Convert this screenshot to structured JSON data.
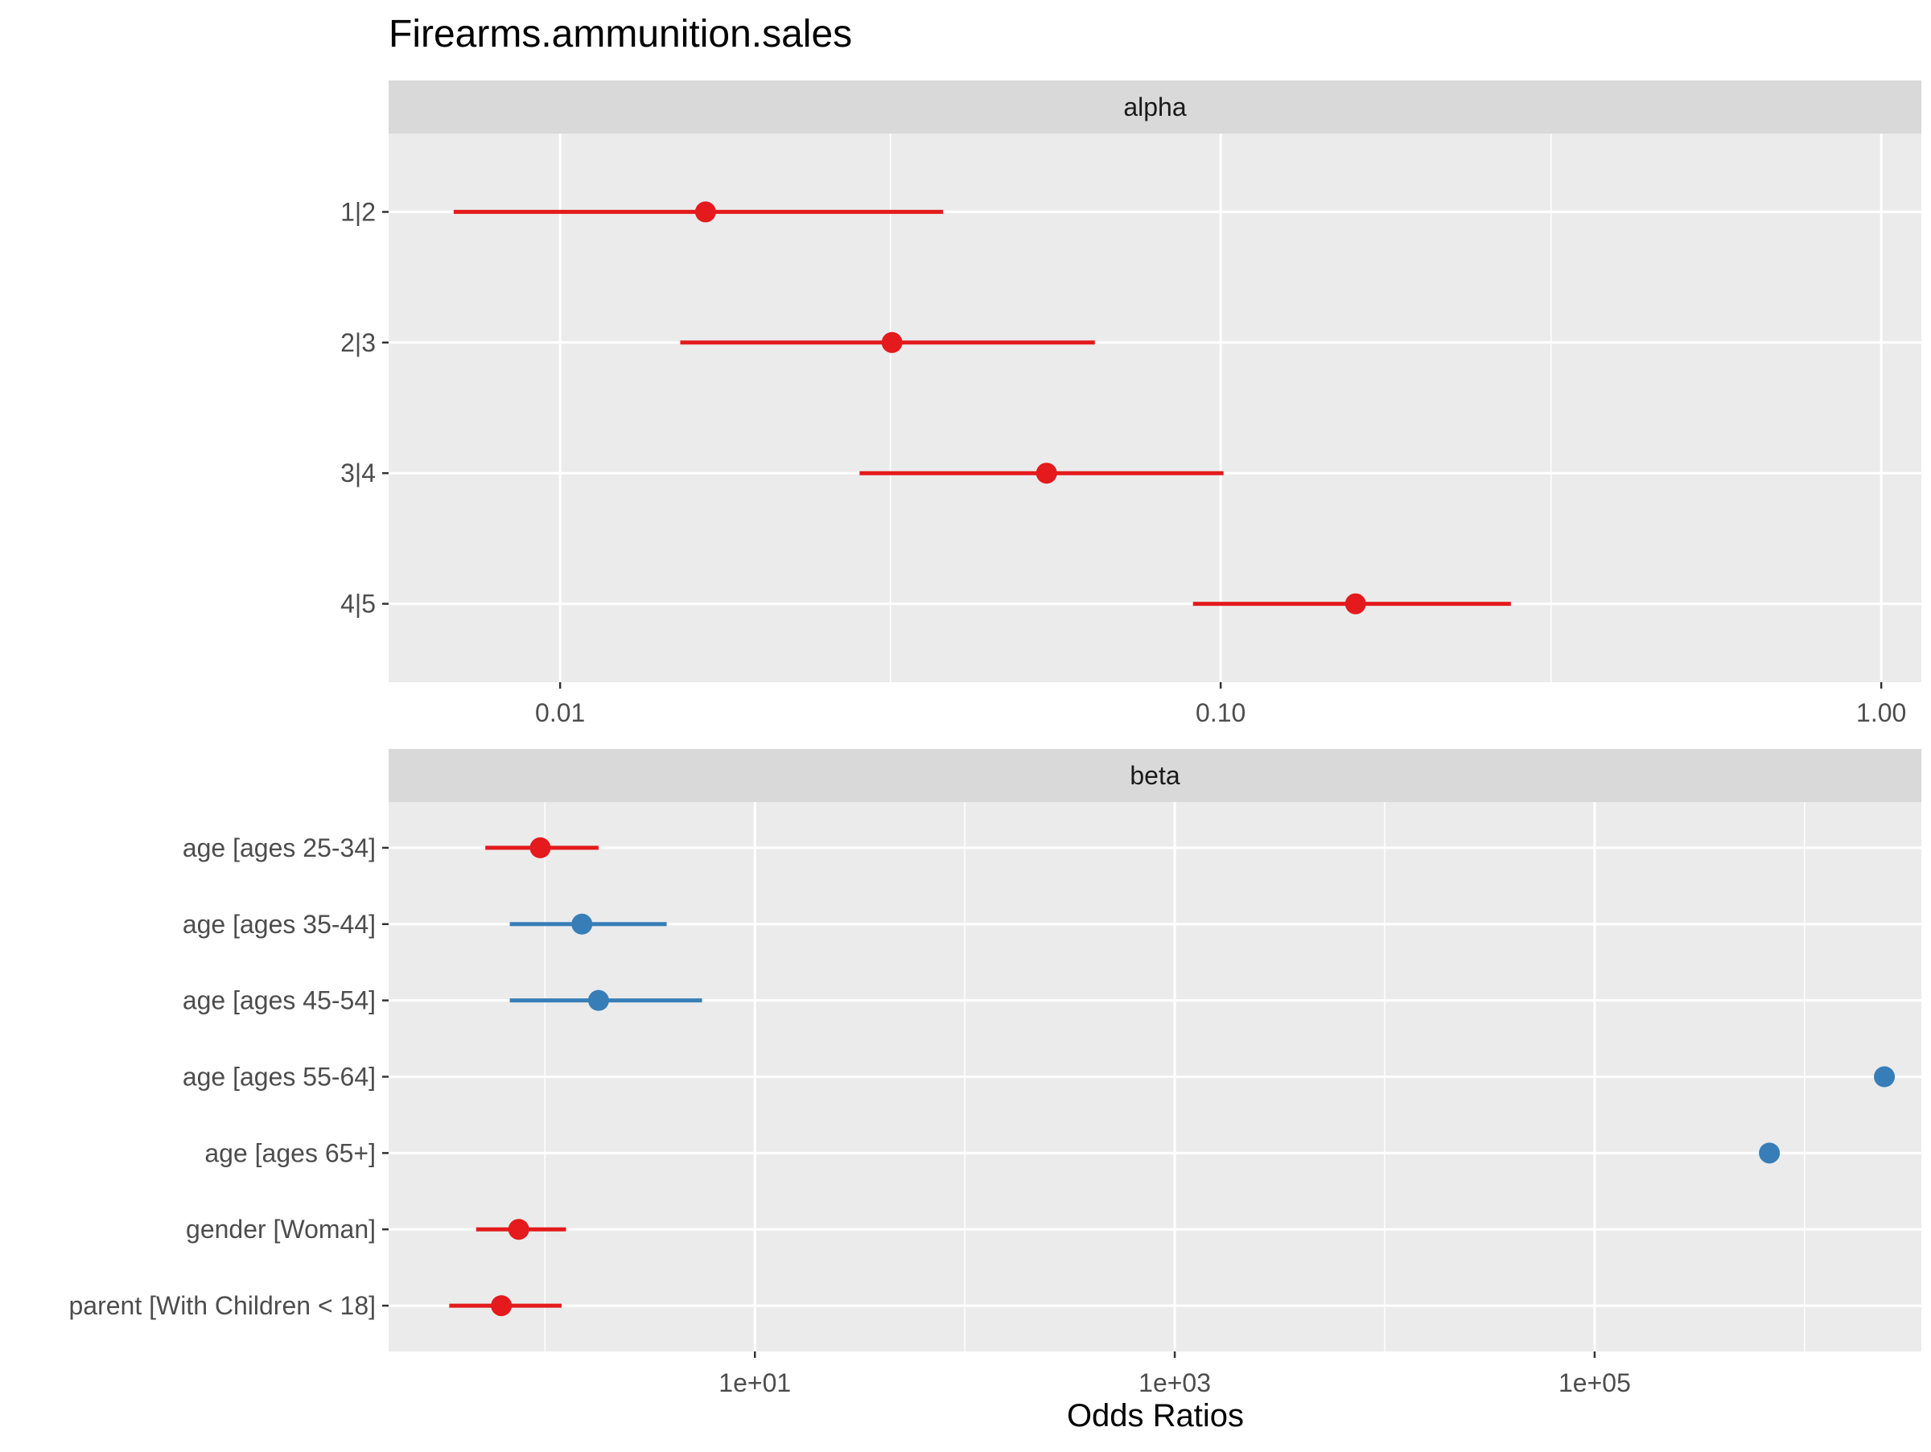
{
  "chart_data": {
    "type": "scatter",
    "title": "Firearms.ammunition.sales",
    "xlabel": "Odds Ratios",
    "ylabel": "",
    "grid": true,
    "legend": "none",
    "x_scale": "log10",
    "colors": {
      "odds_above_1": "#377EB8",
      "odds_below_1": "#E41A1C"
    },
    "panels": [
      {
        "name": "alpha",
        "x_ticks": [
          {
            "value": 0.01,
            "label": "0.01"
          },
          {
            "value": 0.1,
            "label": "0.10"
          },
          {
            "value": 1.0,
            "label": "1.00"
          }
        ],
        "xlim": [
          0.0055,
          1.15
        ],
        "terms": [
          {
            "label": "1|2",
            "estimate": 0.0166,
            "ci_low": 0.0069,
            "ci_high": 0.038,
            "color": "#E41A1C"
          },
          {
            "label": "2|3",
            "estimate": 0.0318,
            "ci_low": 0.0152,
            "ci_high": 0.0645,
            "color": "#E41A1C"
          },
          {
            "label": "3|4",
            "estimate": 0.0545,
            "ci_low": 0.0284,
            "ci_high": 0.101,
            "color": "#E41A1C"
          },
          {
            "label": "4|5",
            "estimate": 0.16,
            "ci_low": 0.0908,
            "ci_high": 0.275,
            "color": "#E41A1C"
          }
        ]
      },
      {
        "name": "beta",
        "x_ticks": [
          {
            "value": 10,
            "label": "1e+01"
          },
          {
            "value": 1000,
            "label": "1e+03"
          },
          {
            "value": 100000,
            "label": "1e+05"
          }
        ],
        "xlim": [
          0.18,
          3600000
        ],
        "terms": [
          {
            "label": "age [ages 25-34]",
            "estimate": 0.95,
            "ci_low": 0.52,
            "ci_high": 1.8,
            "color": "#E41A1C"
          },
          {
            "label": "age [ages 35-44]",
            "estimate": 1.5,
            "ci_low": 0.68,
            "ci_high": 3.8,
            "color": "#377EB8"
          },
          {
            "label": "age [ages 45-54]",
            "estimate": 1.8,
            "ci_low": 0.68,
            "ci_high": 5.6,
            "color": "#377EB8"
          },
          {
            "label": "age [ages 55-64]",
            "estimate": 2400000,
            "ci_low": null,
            "ci_high": null,
            "color": "#377EB8"
          },
          {
            "label": "age [ages 65+]",
            "estimate": 680000,
            "ci_low": null,
            "ci_high": null,
            "color": "#377EB8"
          },
          {
            "label": "gender [Woman]",
            "estimate": 0.75,
            "ci_low": 0.47,
            "ci_high": 1.26,
            "color": "#E41A1C"
          },
          {
            "label": "parent [With Children < 18]",
            "estimate": 0.62,
            "ci_low": 0.35,
            "ci_high": 1.2,
            "color": "#E41A1C"
          }
        ]
      }
    ]
  }
}
